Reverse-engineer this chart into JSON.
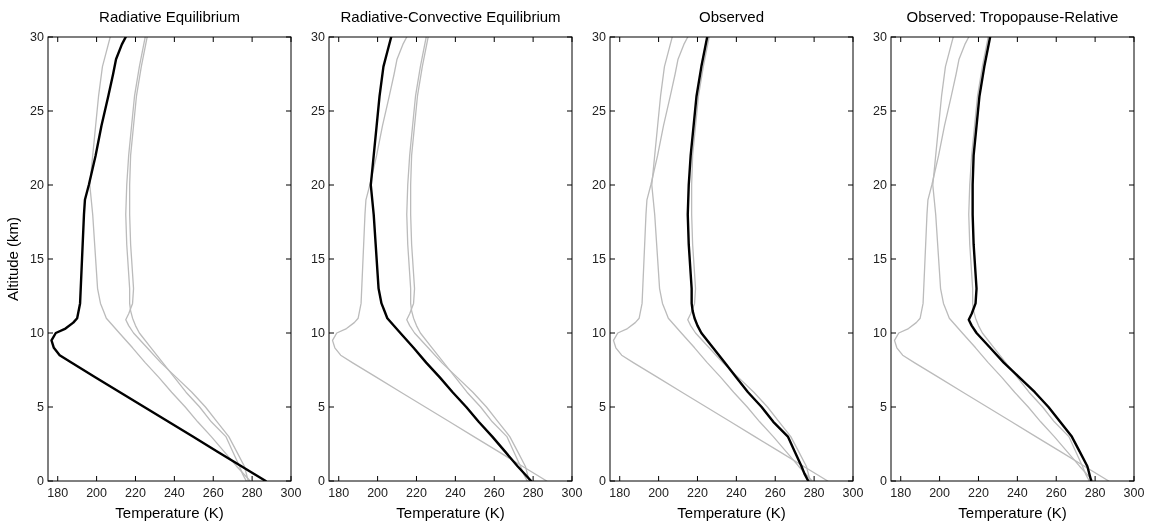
{
  "chart_data": [
    {
      "type": "line",
      "title": "Radiative Equilibrium",
      "xlabel": "Temperature (K)",
      "ylabel": "Altitude (km)",
      "xlim": [
        175,
        300
      ],
      "xticks": [
        180,
        200,
        220,
        240,
        260,
        280,
        300
      ],
      "ylim": [
        0,
        30
      ],
      "yticks": [
        0,
        5,
        10,
        15,
        20,
        25,
        30
      ],
      "series": [
        {
          "color": "#bbbbbb",
          "x": [
            279,
            272,
            265.5,
            259,
            252,
            245.6,
            238.6,
            232,
            225,
            218.5,
            211.7,
            205,
            203.5,
            202,
            200.5,
            200,
            199,
            198,
            196.5,
            198,
            199.5,
            201,
            203,
            205,
            207
          ],
          "values": [
            0,
            1,
            2,
            3,
            4,
            5,
            6,
            7,
            8,
            9,
            10,
            11,
            11.5,
            12,
            13,
            14,
            16,
            18,
            20,
            22,
            24,
            26,
            28,
            29,
            30
          ]
        },
        {
          "color": "#bbbbbb",
          "x": [
            277,
            275,
            273.5,
            270,
            266.5,
            259,
            253,
            246,
            240,
            234,
            228,
            222,
            220,
            218.5,
            217.5,
            217,
            217,
            216.5,
            215.5,
            215,
            215.5,
            216.5,
            218,
            219.5,
            222,
            225
          ],
          "values": [
            0,
            0.5,
            1,
            2,
            3,
            4,
            5,
            6,
            7,
            8,
            9,
            10,
            10.5,
            11,
            11.5,
            12,
            13,
            14,
            16,
            18,
            20,
            22,
            24,
            26,
            28,
            30
          ]
        },
        {
          "color": "#bbbbbb",
          "x": [
            278,
            276,
            272,
            268,
            262,
            256,
            249,
            241,
            233,
            226,
            219,
            216.5,
            215,
            216.5,
            218.5,
            219,
            218.5,
            217.5,
            217,
            217,
            217.5,
            219,
            220.5,
            223,
            226
          ],
          "values": [
            0,
            1,
            2,
            3,
            4,
            5,
            6,
            7,
            8,
            9,
            10,
            10.5,
            10.9,
            11.3,
            12,
            13,
            14,
            16,
            18,
            20,
            22,
            24,
            26,
            28,
            30
          ]
        },
        {
          "color": "#000000",
          "x": [
            287,
            274.5,
            262,
            249.5,
            237,
            224.5,
            212,
            199.5,
            187,
            181,
            178,
            176.8,
            179,
            184,
            188,
            190,
            191.5,
            192.5,
            193.5,
            194,
            196,
            199.5,
            202.5,
            206,
            208.5,
            210,
            213,
            215
          ],
          "values": [
            0,
            1,
            2,
            3,
            4,
            5,
            6,
            7,
            8,
            8.5,
            9,
            9.5,
            10,
            10.3,
            10.7,
            11,
            12,
            15,
            18,
            19,
            20,
            22,
            24,
            26,
            27.5,
            28.5,
            29.5,
            30
          ]
        }
      ]
    },
    {
      "type": "line",
      "title": "Radiative-Convective Equilibrium",
      "xlabel": "Temperature (K)",
      "xlim": [
        175,
        300
      ],
      "xticks": [
        180,
        200,
        220,
        240,
        260,
        280,
        300
      ],
      "ylim": [
        0,
        30
      ],
      "yticks": [
        0,
        5,
        10,
        15,
        20,
        25,
        30
      ],
      "series": [
        {
          "color": "#bbbbbb",
          "x": [
            287,
            274.5,
            262,
            249.5,
            237,
            224.5,
            212,
            199.5,
            187,
            181,
            178,
            176.8,
            179,
            184,
            188,
            190,
            191.5,
            192.5,
            193.5,
            194,
            196,
            199.5,
            202.5,
            206,
            208.5,
            210,
            213,
            215
          ],
          "values": [
            0,
            1,
            2,
            3,
            4,
            5,
            6,
            7,
            8,
            8.5,
            9,
            9.5,
            10,
            10.3,
            10.7,
            11,
            12,
            15,
            18,
            19,
            20,
            22,
            24,
            26,
            27.5,
            28.5,
            29.5,
            30
          ]
        },
        {
          "color": "#bbbbbb",
          "x": [
            277,
            275,
            273.5,
            270,
            266.5,
            259,
            253,
            246,
            240,
            234,
            228,
            222,
            220,
            218.5,
            217.5,
            217,
            217,
            216.5,
            215.5,
            215,
            215.5,
            216.5,
            218,
            219.5,
            222,
            225
          ],
          "values": [
            0,
            0.5,
            1,
            2,
            3,
            4,
            5,
            6,
            7,
            8,
            9,
            10,
            10.5,
            11,
            11.5,
            12,
            13,
            14,
            16,
            18,
            20,
            22,
            24,
            26,
            28,
            30
          ]
        },
        {
          "color": "#bbbbbb",
          "x": [
            278,
            276,
            272,
            268,
            262,
            256,
            249,
            241,
            233,
            226,
            219,
            216.5,
            215,
            216.5,
            218.5,
            219,
            218.5,
            217.5,
            217,
            217,
            217.5,
            219,
            220.5,
            223,
            226
          ],
          "values": [
            0,
            1,
            2,
            3,
            4,
            5,
            6,
            7,
            8,
            9,
            10,
            10.5,
            10.9,
            11.3,
            12,
            13,
            14,
            16,
            18,
            20,
            22,
            24,
            26,
            28,
            30
          ]
        },
        {
          "color": "#000000",
          "x": [
            279,
            272,
            265.5,
            259,
            252,
            245.6,
            238.6,
            232,
            225,
            218.5,
            211.7,
            205,
            203.5,
            202,
            200.5,
            200,
            199,
            198,
            196.5,
            198,
            199.5,
            201,
            203,
            205,
            207
          ],
          "values": [
            0,
            1,
            2,
            3,
            4,
            5,
            6,
            7,
            8,
            9,
            10,
            11,
            11.5,
            12,
            13,
            14,
            16,
            18,
            20,
            22,
            24,
            26,
            28,
            29,
            30
          ]
        }
      ]
    },
    {
      "type": "line",
      "title": "Observed",
      "xlabel": "Temperature (K)",
      "xlim": [
        175,
        300
      ],
      "xticks": [
        180,
        200,
        220,
        240,
        260,
        280,
        300
      ],
      "ylim": [
        0,
        30
      ],
      "yticks": [
        0,
        5,
        10,
        15,
        20,
        25,
        30
      ],
      "series": [
        {
          "color": "#bbbbbb",
          "x": [
            287,
            274.5,
            262,
            249.5,
            237,
            224.5,
            212,
            199.5,
            187,
            181,
            178,
            176.8,
            179,
            184,
            188,
            190,
            191.5,
            192.5,
            193.5,
            194,
            196,
            199.5,
            202.5,
            206,
            208.5,
            210,
            213,
            215
          ],
          "values": [
            0,
            1,
            2,
            3,
            4,
            5,
            6,
            7,
            8,
            8.5,
            9,
            9.5,
            10,
            10.3,
            10.7,
            11,
            12,
            15,
            18,
            19,
            20,
            22,
            24,
            26,
            27.5,
            28.5,
            29.5,
            30
          ]
        },
        {
          "color": "#bbbbbb",
          "x": [
            279,
            272,
            265.5,
            259,
            252,
            245.6,
            238.6,
            232,
            225,
            218.5,
            211.7,
            205,
            203.5,
            202,
            200.5,
            200,
            199,
            198,
            196.5,
            198,
            199.5,
            201,
            203,
            205,
            207
          ],
          "values": [
            0,
            1,
            2,
            3,
            4,
            5,
            6,
            7,
            8,
            9,
            10,
            11,
            11.5,
            12,
            13,
            14,
            16,
            18,
            20,
            22,
            24,
            26,
            28,
            29,
            30
          ]
        },
        {
          "color": "#bbbbbb",
          "x": [
            278,
            276,
            272,
            268,
            262,
            256,
            249,
            241,
            233,
            226,
            219,
            216.5,
            215,
            216.5,
            218.5,
            219,
            218.5,
            217.5,
            217,
            217,
            217.5,
            219,
            220.5,
            223,
            226
          ],
          "values": [
            0,
            1,
            2,
            3,
            4,
            5,
            6,
            7,
            8,
            9,
            10,
            10.5,
            10.9,
            11.3,
            12,
            13,
            14,
            16,
            18,
            20,
            22,
            24,
            26,
            28,
            30
          ]
        },
        {
          "color": "#000000",
          "x": [
            277,
            275,
            273.5,
            270,
            266.5,
            259,
            253,
            246,
            240,
            234,
            228,
            222,
            220,
            218.5,
            217.5,
            217,
            217,
            216.5,
            215.5,
            215,
            215.5,
            216.5,
            218,
            219.5,
            222,
            225
          ],
          "values": [
            0,
            0.5,
            1,
            2,
            3,
            4,
            5,
            6,
            7,
            8,
            9,
            10,
            10.5,
            11,
            11.5,
            12,
            13,
            14,
            16,
            18,
            20,
            22,
            24,
            26,
            28,
            30
          ]
        }
      ]
    },
    {
      "type": "line",
      "title": "Observed: Tropopause-Relative",
      "xlabel": "Temperature (K)",
      "xlim": [
        175,
        300
      ],
      "xticks": [
        180,
        200,
        220,
        240,
        260,
        280,
        300
      ],
      "ylim": [
        0,
        30
      ],
      "yticks": [
        0,
        5,
        10,
        15,
        20,
        25,
        30
      ],
      "series": [
        {
          "color": "#bbbbbb",
          "x": [
            287,
            274.5,
            262,
            249.5,
            237,
            224.5,
            212,
            199.5,
            187,
            181,
            178,
            176.8,
            179,
            184,
            188,
            190,
            191.5,
            192.5,
            193.5,
            194,
            196,
            199.5,
            202.5,
            206,
            208.5,
            210,
            213,
            215
          ],
          "values": [
            0,
            1,
            2,
            3,
            4,
            5,
            6,
            7,
            8,
            8.5,
            9,
            9.5,
            10,
            10.3,
            10.7,
            11,
            12,
            15,
            18,
            19,
            20,
            22,
            24,
            26,
            27.5,
            28.5,
            29.5,
            30
          ]
        },
        {
          "color": "#bbbbbb",
          "x": [
            279,
            272,
            265.5,
            259,
            252,
            245.6,
            238.6,
            232,
            225,
            218.5,
            211.7,
            205,
            203.5,
            202,
            200.5,
            200,
            199,
            198,
            196.5,
            198,
            199.5,
            201,
            203,
            205,
            207
          ],
          "values": [
            0,
            1,
            2,
            3,
            4,
            5,
            6,
            7,
            8,
            9,
            10,
            11,
            11.5,
            12,
            13,
            14,
            16,
            18,
            20,
            22,
            24,
            26,
            28,
            29,
            30
          ]
        },
        {
          "color": "#bbbbbb",
          "x": [
            277,
            275,
            273.5,
            270,
            266.5,
            259,
            253,
            246,
            240,
            234,
            228,
            222,
            220,
            218.5,
            217.5,
            217,
            217,
            216.5,
            215.5,
            215,
            215.5,
            216.5,
            218,
            219.5,
            222,
            225
          ],
          "values": [
            0,
            0.5,
            1,
            2,
            3,
            4,
            5,
            6,
            7,
            8,
            9,
            10,
            10.5,
            11,
            11.5,
            12,
            13,
            14,
            16,
            18,
            20,
            22,
            24,
            26,
            28,
            30
          ]
        },
        {
          "color": "#000000",
          "x": [
            278,
            276,
            272,
            268,
            262,
            256,
            249,
            241,
            233,
            226,
            219,
            216.5,
            215,
            216.5,
            218.5,
            219,
            218.5,
            217.5,
            217,
            217,
            217.5,
            219,
            220.5,
            223,
            226
          ],
          "values": [
            0,
            1,
            2,
            3,
            4,
            5,
            6,
            7,
            8,
            9,
            10,
            10.5,
            10.9,
            11.3,
            12,
            13,
            14,
            16,
            18,
            20,
            22,
            24,
            26,
            28,
            30
          ]
        }
      ]
    }
  ]
}
